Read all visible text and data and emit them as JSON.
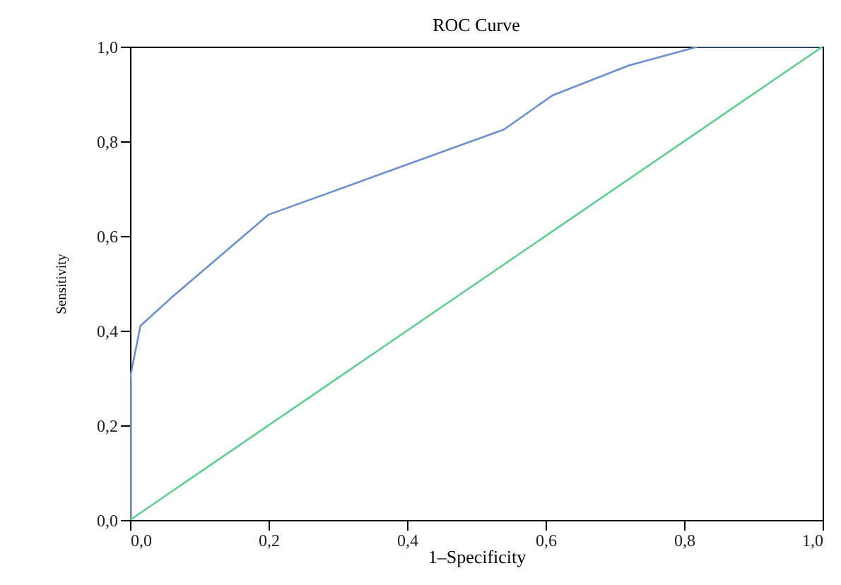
{
  "chart_data": {
    "type": "line",
    "title": "ROC Curve",
    "xlabel": "1–Specificity",
    "ylabel": "Sensitivity",
    "xlim": [
      0,
      1
    ],
    "ylim": [
      0,
      1
    ],
    "xticks": [
      {
        "value": 0,
        "label": "0,0"
      },
      {
        "value": 0.2,
        "label": "0,2"
      },
      {
        "value": 0.4,
        "label": "0,4"
      },
      {
        "value": 0.6,
        "label": "0,6"
      },
      {
        "value": 0.8,
        "label": "0,8"
      },
      {
        "value": 1,
        "label": "1,0"
      }
    ],
    "yticks": [
      {
        "value": 0,
        "label": "0,0"
      },
      {
        "value": 0.2,
        "label": "0,2"
      },
      {
        "value": 0.4,
        "label": "0,4"
      },
      {
        "value": 0.6,
        "label": "0,6"
      },
      {
        "value": 0.8,
        "label": "0,8"
      },
      {
        "value": 1,
        "label": "1,0"
      }
    ],
    "series": [
      {
        "color": "#6b8fcf",
        "x": [
          0,
          0,
          0.015,
          0.06,
          0.2,
          0.54,
          0.61,
          0.72,
          0.82,
          1
        ],
        "values": [
          0,
          0.3,
          0.41,
          0.47,
          0.645,
          0.825,
          0.897,
          0.96,
          1,
          1
        ]
      },
      {
        "color": "#5fcf8f",
        "x": [
          0,
          1
        ],
        "values": [
          0,
          1
        ]
      }
    ],
    "grid": false,
    "marker": "none",
    "line_style": "solid"
  }
}
